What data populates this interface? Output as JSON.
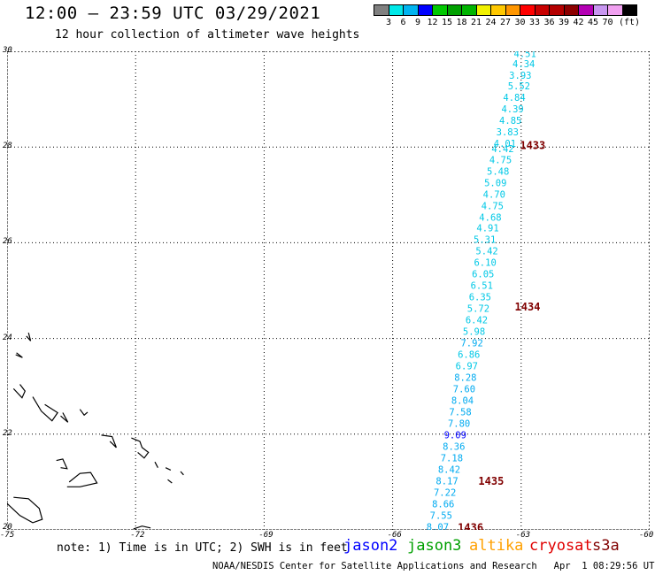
{
  "header": {
    "title": "12:00 – 23:59 UTC 03/29/2021",
    "subtitle": "12 hour collection of altimeter wave heights"
  },
  "colorbar": {
    "colors": [
      "#808080",
      "#00e8e8",
      "#00b4f0",
      "#0000ff",
      "#00c800",
      "#00a000",
      "#00b400",
      "#f0f000",
      "#ffc800",
      "#ff9600",
      "#ff0000",
      "#c80000",
      "#b40000",
      "#8c0000",
      "#b400b4",
      "#c896f0",
      "#f0a0f0",
      "#000000"
    ],
    "labels": [
      "3",
      "6",
      "9",
      "12",
      "15",
      "18",
      "21",
      "24",
      "27",
      "30",
      "33",
      "36",
      "39",
      "42",
      "45",
      "70",
      "(ft)"
    ]
  },
  "map": {
    "lon_ticks": [
      "-75",
      "-72",
      "-69",
      "-66",
      "-63",
      "-60"
    ],
    "lat_ticks": [
      "20",
      "22",
      "24",
      "26",
      "28",
      "30"
    ],
    "lon_range": [
      -75,
      -60
    ],
    "lat_range": [
      20,
      30
    ],
    "grid": "dotted",
    "land_outline_color": "#000000"
  },
  "track": {
    "satellite": "jason3",
    "points": [
      {
        "lon": -62.91,
        "lat": 29.94,
        "swh": "4.51",
        "color": "#00c8e6"
      },
      {
        "lon": -62.94,
        "lat": 29.72,
        "swh": "4.34",
        "color": "#00c8e6"
      },
      {
        "lon": -63.02,
        "lat": 29.48,
        "swh": "3.93",
        "color": "#00c8e6"
      },
      {
        "lon": -63.05,
        "lat": 29.26,
        "swh": "5.52",
        "color": "#00c8e6"
      },
      {
        "lon": -63.16,
        "lat": 29.02,
        "swh": "4.84",
        "color": "#00c8e6"
      },
      {
        "lon": -63.2,
        "lat": 28.78,
        "swh": "4.39",
        "color": "#00c8e6"
      },
      {
        "lon": -63.25,
        "lat": 28.54,
        "swh": "4.85",
        "color": "#00c8e6"
      },
      {
        "lon": -63.32,
        "lat": 28.3,
        "swh": "3.83",
        "color": "#00c8e6"
      },
      {
        "lon": -63.38,
        "lat": 28.06,
        "swh": "4.01",
        "color": "#00c8e6"
      },
      {
        "lon": -63.43,
        "lat": 27.95,
        "swh": "4.42",
        "color": "#00c8e6"
      },
      {
        "lon": -63.48,
        "lat": 27.72,
        "swh": "4.75",
        "color": "#00c8e6"
      },
      {
        "lon": -63.54,
        "lat": 27.48,
        "swh": "5.48",
        "color": "#00c8e6"
      },
      {
        "lon": -63.6,
        "lat": 27.24,
        "swh": "5.09",
        "color": "#00c8e6"
      },
      {
        "lon": -63.63,
        "lat": 27.0,
        "swh": "4.70",
        "color": "#00c8e6"
      },
      {
        "lon": -63.67,
        "lat": 26.76,
        "swh": "4.75",
        "color": "#00c8e6"
      },
      {
        "lon": -63.72,
        "lat": 26.52,
        "swh": "4.68",
        "color": "#00c8e6"
      },
      {
        "lon": -63.78,
        "lat": 26.29,
        "swh": "4.91",
        "color": "#00c8e6"
      },
      {
        "lon": -63.85,
        "lat": 26.05,
        "swh": "5.31",
        "color": "#00c8e6"
      },
      {
        "lon": -63.8,
        "lat": 25.81,
        "swh": "5.42",
        "color": "#00c8e6"
      },
      {
        "lon": -63.84,
        "lat": 25.57,
        "swh": "6.10",
        "color": "#00c8e6"
      },
      {
        "lon": -63.89,
        "lat": 25.33,
        "swh": "6.05",
        "color": "#00c8e6"
      },
      {
        "lon": -63.92,
        "lat": 25.09,
        "swh": "6.51",
        "color": "#00c8e6"
      },
      {
        "lon": -63.96,
        "lat": 24.85,
        "swh": "6.35",
        "color": "#00c8e6"
      },
      {
        "lon": -64.0,
        "lat": 24.61,
        "swh": "5.72",
        "color": "#00c8e6"
      },
      {
        "lon": -64.04,
        "lat": 24.37,
        "swh": "6.42",
        "color": "#00c8e6"
      },
      {
        "lon": -64.1,
        "lat": 24.13,
        "swh": "5.98",
        "color": "#00c8e6"
      },
      {
        "lon": -64.15,
        "lat": 23.89,
        "swh": "7.92",
        "color": "#00aaf0"
      },
      {
        "lon": -64.22,
        "lat": 23.65,
        "swh": "6.86",
        "color": "#00c8e6"
      },
      {
        "lon": -64.27,
        "lat": 23.41,
        "swh": "6.97",
        "color": "#00c8e6"
      },
      {
        "lon": -64.3,
        "lat": 23.17,
        "swh": "8.28",
        "color": "#00aaf0"
      },
      {
        "lon": -64.33,
        "lat": 22.93,
        "swh": "7.60",
        "color": "#00aaf0"
      },
      {
        "lon": -64.37,
        "lat": 22.69,
        "swh": "8.04",
        "color": "#00aaf0"
      },
      {
        "lon": -64.42,
        "lat": 22.45,
        "swh": "7.58",
        "color": "#00aaf0"
      },
      {
        "lon": -64.45,
        "lat": 22.21,
        "swh": "7.80",
        "color": "#00aaf0"
      },
      {
        "lon": -64.54,
        "lat": 21.97,
        "swh": "9.09",
        "color": "#0000ff"
      },
      {
        "lon": -64.57,
        "lat": 21.73,
        "swh": "8.36",
        "color": "#00aaf0"
      },
      {
        "lon": -64.62,
        "lat": 21.49,
        "swh": "7.18",
        "color": "#00aaf0"
      },
      {
        "lon": -64.68,
        "lat": 21.25,
        "swh": "8.42",
        "color": "#00aaf0"
      },
      {
        "lon": -64.73,
        "lat": 21.01,
        "swh": "8.17",
        "color": "#00aaf0"
      },
      {
        "lon": -64.78,
        "lat": 20.77,
        "swh": "7.22",
        "color": "#00aaf0"
      },
      {
        "lon": -64.82,
        "lat": 20.53,
        "swh": "8.66",
        "color": "#00aaf0"
      },
      {
        "lon": -64.87,
        "lat": 20.29,
        "swh": "7.55",
        "color": "#00aaf0"
      },
      {
        "lon": -64.95,
        "lat": 20.05,
        "swh": "8.07",
        "color": "#00aaf0"
      }
    ],
    "time_labels": [
      {
        "lon": -63.03,
        "lat": 28.02,
        "text": "1433"
      },
      {
        "lon": -63.15,
        "lat": 24.65,
        "text": "1434"
      },
      {
        "lon": -64.0,
        "lat": 21.01,
        "text": "1435"
      },
      {
        "lon": -64.48,
        "lat": 20.04,
        "text": "1436"
      }
    ],
    "time_label_color": "#800000"
  },
  "legend": {
    "note": "note: 1) Time is in UTC; 2) SWH is in feet",
    "satellites": [
      {
        "name": "jason2",
        "color": "#0000ff"
      },
      {
        "name": "jason3",
        "color": "#00a000"
      },
      {
        "name": "altika",
        "color": "#ffa000"
      },
      {
        "name": "cryosat",
        "color": "#e00000"
      },
      {
        "name": "s3a",
        "color": "#800000"
      }
    ]
  },
  "footer": {
    "credit": "NOAA/NESDIS Center for Satellite Applications and Research",
    "timestamp": "Apr  1 08:29:56 UTC 2021"
  }
}
